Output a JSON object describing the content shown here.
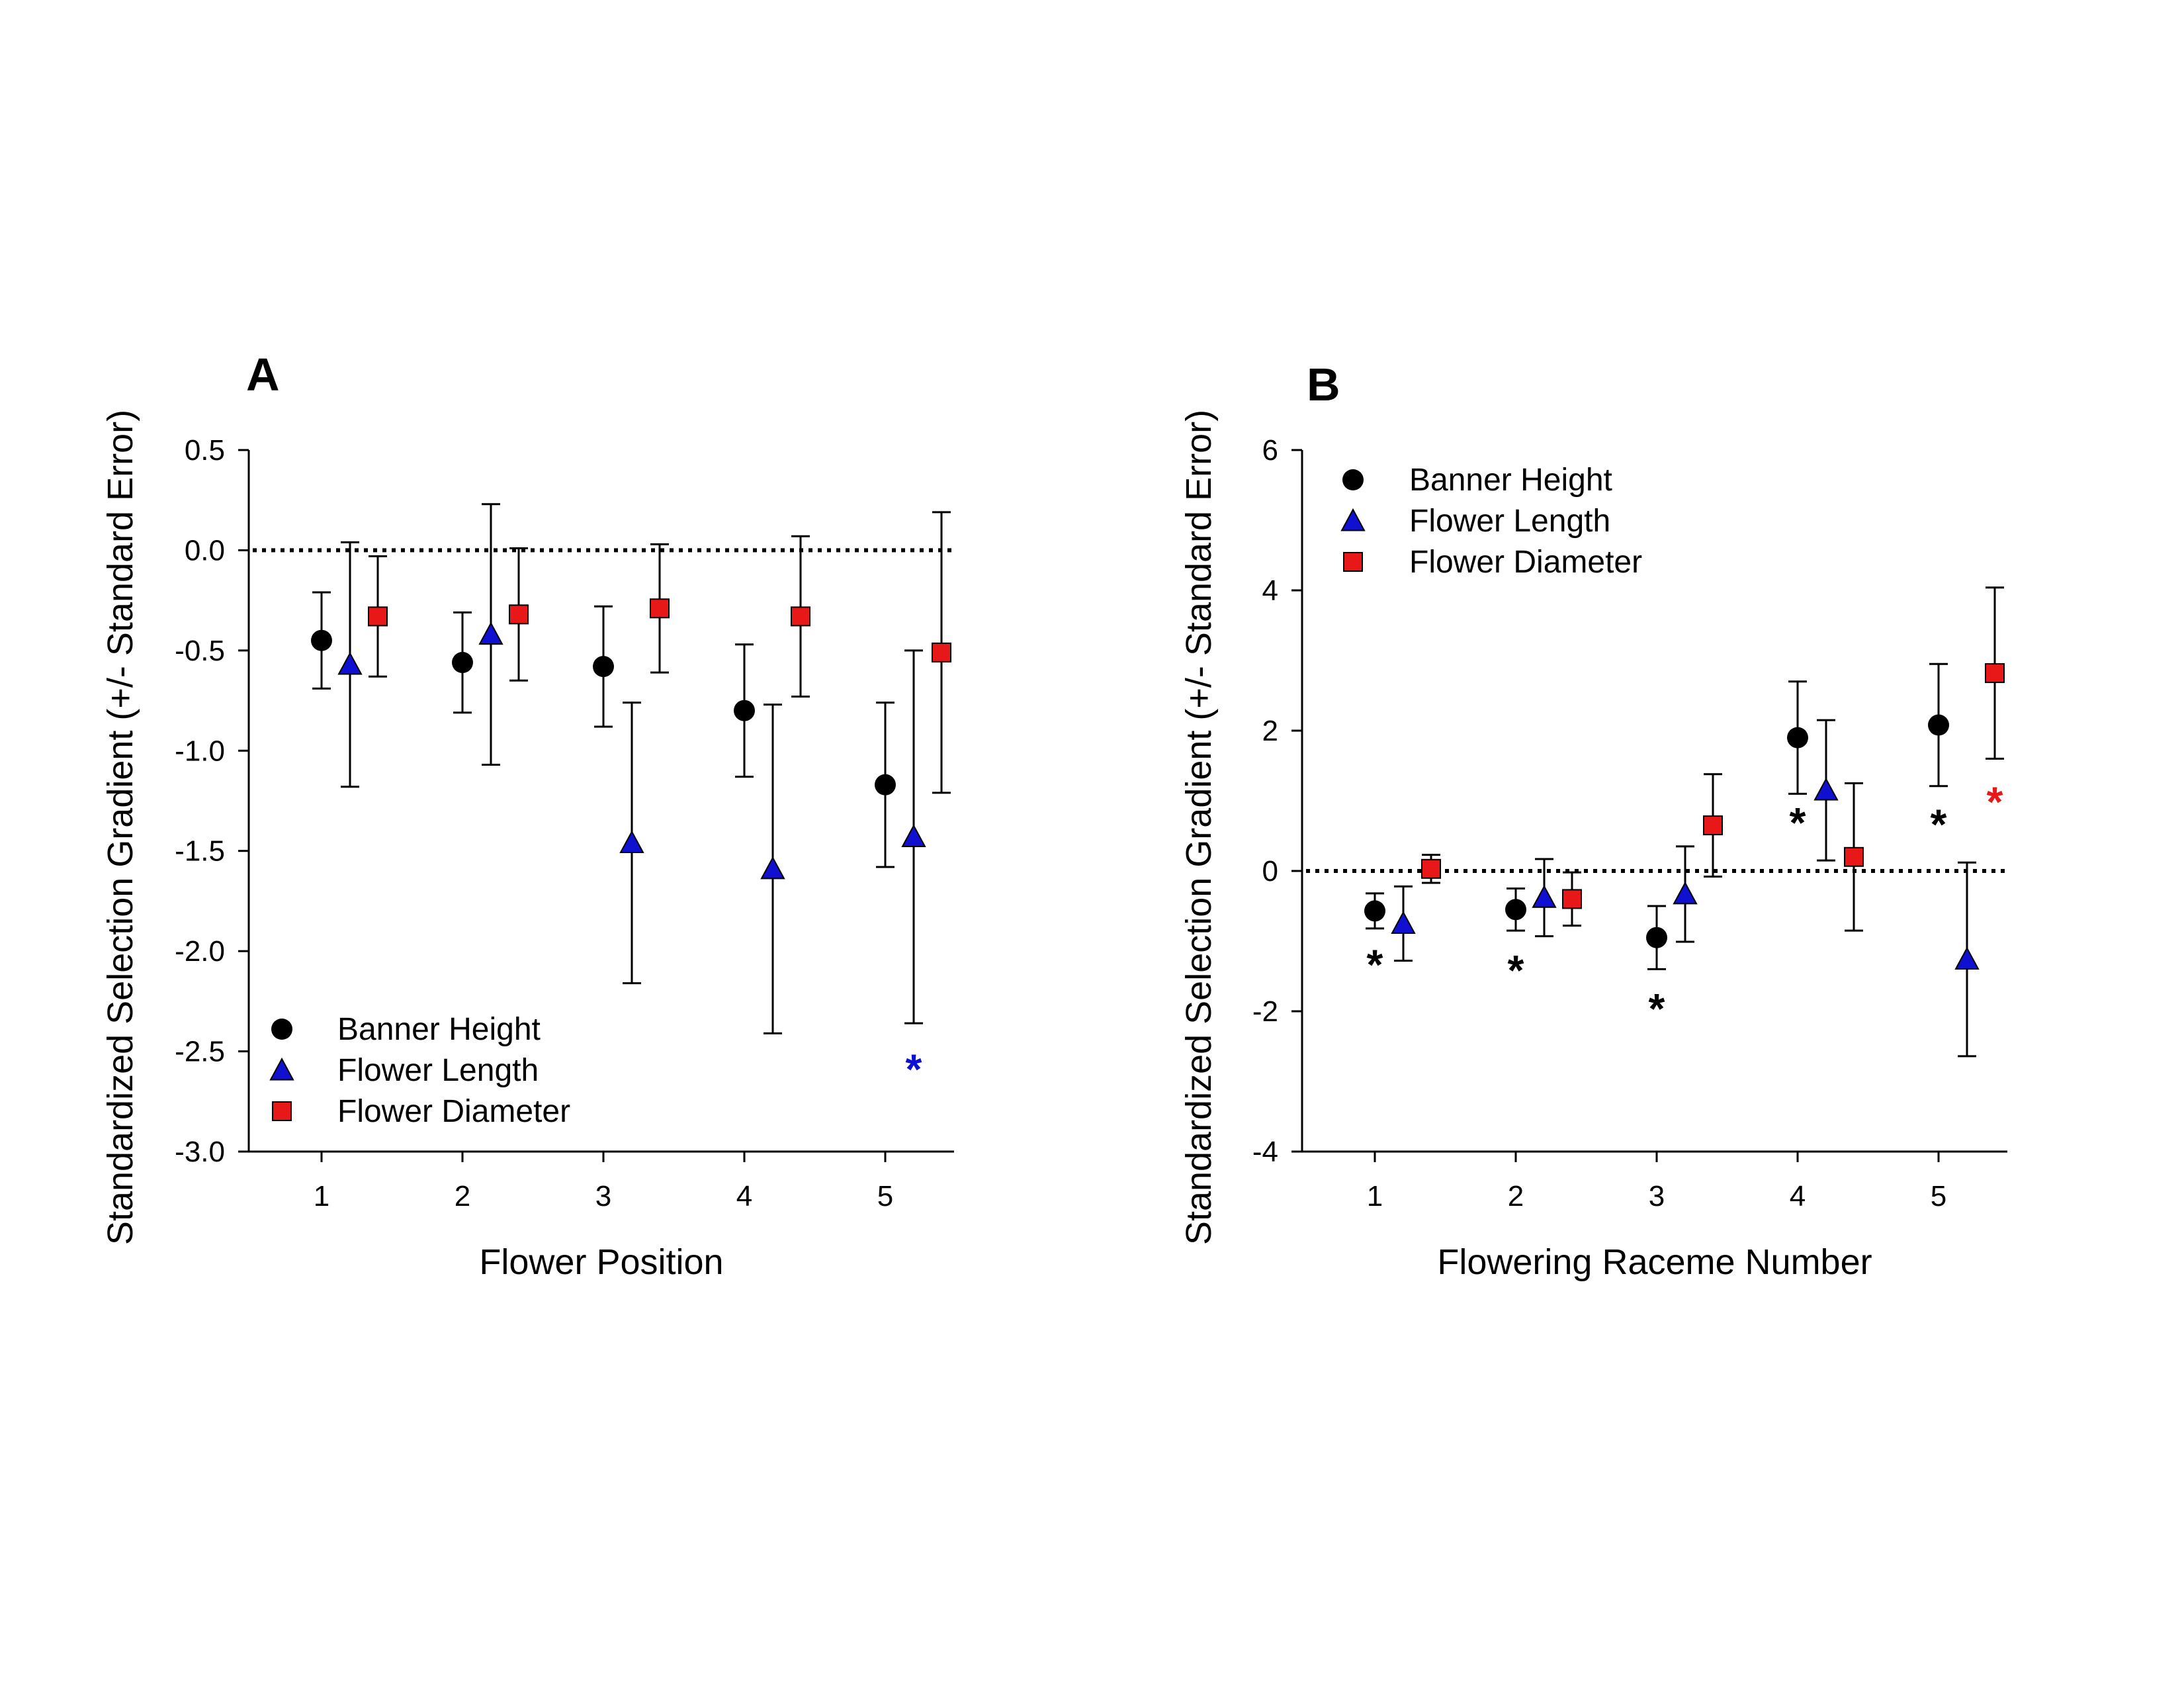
{
  "chart_data": [
    {
      "panel": "A",
      "type": "scatter",
      "xlabel": "Flower Position",
      "ylabel": "Standardized Selection Gradient (+/- Standard Error)",
      "categories": [
        "1",
        "2",
        "3",
        "4",
        "5"
      ],
      "ylim": [
        -3.0,
        0.5
      ],
      "yticks": [
        "0.5",
        "0.0",
        "-0.5",
        "-1.0",
        "-1.5",
        "-2.0",
        "-2.5",
        "-3.0"
      ],
      "reference_line": 0,
      "legend_position": "bottom-left",
      "series": [
        {
          "name": "Banner Height",
          "marker": "circle",
          "color": "#000000",
          "values": [
            -0.45,
            -0.56,
            -0.58,
            -0.8,
            -1.17
          ],
          "errors": [
            0.24,
            0.25,
            0.3,
            0.33,
            0.41
          ]
        },
        {
          "name": "Flower Length",
          "marker": "triangle",
          "color": "#1010d0",
          "values": [
            -0.57,
            -0.42,
            -1.46,
            -1.59,
            -1.43
          ],
          "errors": [
            0.61,
            0.65,
            0.7,
            0.82,
            0.93
          ]
        },
        {
          "name": "Flower Diameter",
          "marker": "square",
          "color": "#e81818",
          "values": [
            -0.33,
            -0.32,
            -0.29,
            -0.33,
            -0.51
          ],
          "errors": [
            0.3,
            0.33,
            0.32,
            0.4,
            0.7
          ]
        }
      ],
      "significance": [
        {
          "category": "5",
          "series": "Flower Length",
          "value": -2.55,
          "label": "*",
          "color": "#1010d0"
        }
      ]
    },
    {
      "panel": "B",
      "type": "scatter",
      "xlabel": "Flowering Raceme Number",
      "ylabel": "Standardized Selection Gradient (+/- Standard Error)",
      "categories": [
        "1",
        "2",
        "3",
        "4",
        "5"
      ],
      "ylim": [
        -4,
        6
      ],
      "yticks": [
        "6",
        "4",
        "2",
        "0",
        "-2",
        "-4"
      ],
      "reference_line": 0,
      "legend_position": "top-left",
      "series": [
        {
          "name": "Banner Height",
          "marker": "circle",
          "color": "#000000",
          "values": [
            -0.57,
            -0.55,
            -0.95,
            1.9,
            2.08
          ],
          "errors": [
            0.25,
            0.3,
            0.45,
            0.8,
            0.87
          ]
        },
        {
          "name": "Flower Length",
          "marker": "triangle",
          "color": "#1010d0",
          "values": [
            -0.75,
            -0.38,
            -0.33,
            1.15,
            -1.26
          ],
          "errors": [
            0.53,
            0.55,
            0.68,
            1.0,
            1.38
          ]
        },
        {
          "name": "Flower Diameter",
          "marker": "square",
          "color": "#e81818",
          "values": [
            0.03,
            -0.4,
            0.65,
            0.2,
            2.82
          ],
          "errors": [
            0.2,
            0.38,
            0.73,
            1.05,
            1.22
          ]
        }
      ],
      "significance": [
        {
          "category": "1",
          "series": "Banner Height",
          "value": -1.22,
          "label": "*",
          "color": "#000000"
        },
        {
          "category": "2",
          "series": "Banner Height",
          "value": -1.3,
          "label": "*",
          "color": "#000000"
        },
        {
          "category": "3",
          "series": "Banner Height",
          "value": -1.85,
          "label": "*",
          "color": "#000000"
        },
        {
          "category": "4",
          "series": "Banner Height",
          "value": 0.8,
          "label": "*",
          "color": "#000000"
        },
        {
          "category": "5",
          "series": "Banner Height",
          "value": 0.78,
          "label": "*",
          "color": "#000000"
        },
        {
          "category": "5",
          "series": "Flower Diameter",
          "value": 1.1,
          "label": "*",
          "color": "#e81818"
        }
      ]
    }
  ]
}
